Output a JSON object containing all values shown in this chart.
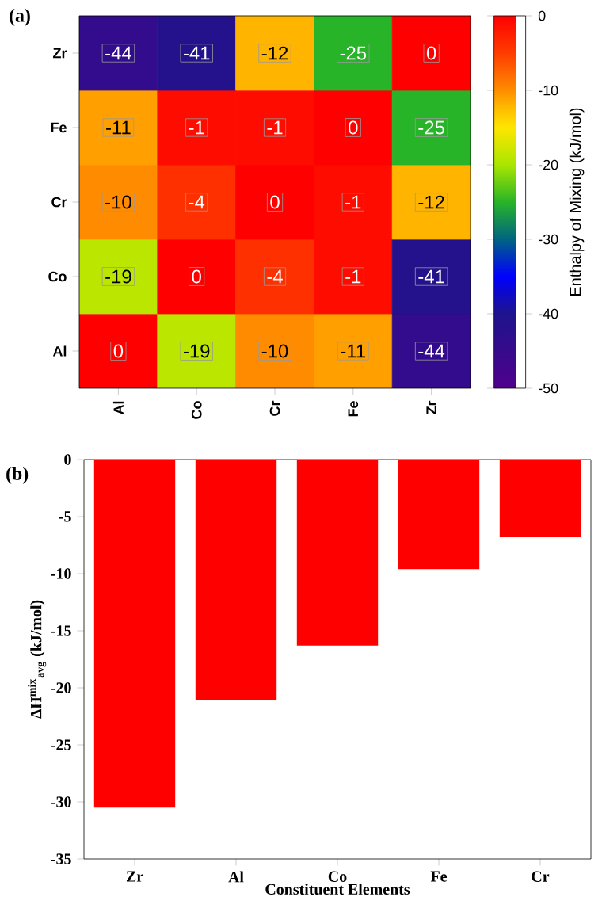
{
  "chart_data": [
    {
      "type": "heatmap",
      "clabel": "Enthalpy of Mixing (kJ/mol)",
      "annotations": [
        "(a)"
      ],
      "categories": [
        "Al",
        "Co",
        "Cr",
        "Fe",
        "Zr"
      ],
      "y_categories": [
        "Zr",
        "Fe",
        "Cr",
        "Co",
        "Al"
      ],
      "cells": [
        [
          -44,
          -41,
          -12,
          -25,
          0
        ],
        [
          -11,
          -1,
          -1,
          0,
          -25
        ],
        [
          -10,
          -4,
          0,
          -1,
          -12
        ],
        [
          -19,
          0,
          -4,
          -1,
          -41
        ],
        [
          0,
          -19,
          -10,
          -11,
          -44
        ]
      ],
      "data_labels": true,
      "clim": [
        -50,
        0
      ],
      "cticks": [
        0,
        -10,
        -20,
        -30,
        -40,
        -50
      ]
    },
    {
      "type": "bar",
      "xlabel": "Constituent Elements",
      "ylabel": "ΔH$^{mix}$$_{avg}$ (kJ/mol)",
      "annotations": [
        "(b)"
      ],
      "categories": [
        "Zr",
        "Al",
        "Co",
        "Fe",
        "Cr"
      ],
      "values": [
        -30.5,
        -21.1,
        -16.3,
        -9.6,
        -6.8
      ],
      "color": "#ff0000",
      "ylim": [
        -35,
        0
      ],
      "yticks": [
        0,
        -5,
        -10,
        -15,
        -20,
        -25,
        -30,
        -35
      ],
      "grid": false
    }
  ]
}
